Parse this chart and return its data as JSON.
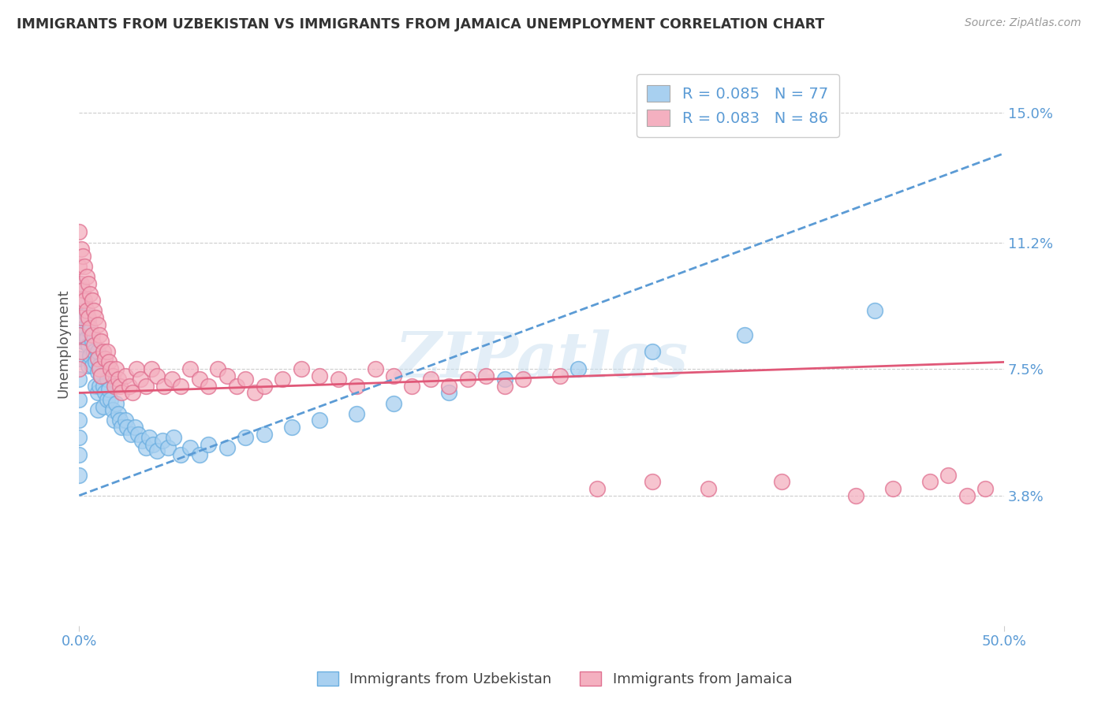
{
  "title": "IMMIGRANTS FROM UZBEKISTAN VS IMMIGRANTS FROM JAMAICA UNEMPLOYMENT CORRELATION CHART",
  "source": "Source: ZipAtlas.com",
  "ylabel": "Unemployment",
  "xlim": [
    0.0,
    0.5
  ],
  "ylim": [
    0.0,
    0.165
  ],
  "ytick_vals": [
    0.038,
    0.075,
    0.112,
    0.15
  ],
  "ytick_labels": [
    "3.8%",
    "7.5%",
    "11.2%",
    "15.0%"
  ],
  "series": [
    {
      "name": "Immigrants from Uzbekistan",
      "R": 0.085,
      "N": 77,
      "color_scatter": "#a8d0f0",
      "color_edge": "#6aaee0",
      "line_color": "#5b9bd5",
      "line_style": "--",
      "intercept": 0.038,
      "slope": 0.2,
      "x_data": [
        0.0,
        0.0,
        0.0,
        0.0,
        0.0,
        0.0,
        0.0,
        0.0,
        0.0,
        0.0,
        0.002,
        0.002,
        0.002,
        0.003,
        0.003,
        0.004,
        0.004,
        0.005,
        0.005,
        0.005,
        0.006,
        0.006,
        0.007,
        0.007,
        0.008,
        0.009,
        0.009,
        0.01,
        0.01,
        0.01,
        0.01,
        0.011,
        0.011,
        0.012,
        0.013,
        0.013,
        0.014,
        0.015,
        0.015,
        0.016,
        0.017,
        0.018,
        0.019,
        0.02,
        0.021,
        0.022,
        0.023,
        0.025,
        0.026,
        0.028,
        0.03,
        0.032,
        0.034,
        0.036,
        0.038,
        0.04,
        0.042,
        0.045,
        0.048,
        0.051,
        0.055,
        0.06,
        0.065,
        0.07,
        0.08,
        0.09,
        0.1,
        0.115,
        0.13,
        0.15,
        0.17,
        0.2,
        0.23,
        0.27,
        0.31,
        0.36,
        0.43
      ],
      "y_data": [
        0.1,
        0.092,
        0.085,
        0.078,
        0.072,
        0.066,
        0.06,
        0.055,
        0.05,
        0.044,
        0.098,
        0.09,
        0.083,
        0.094,
        0.087,
        0.091,
        0.084,
        0.089,
        0.082,
        0.076,
        0.086,
        0.079,
        0.083,
        0.076,
        0.08,
        0.077,
        0.07,
        0.08,
        0.074,
        0.068,
        0.063,
        0.076,
        0.07,
        0.073,
        0.07,
        0.064,
        0.068,
        0.072,
        0.066,
        0.069,
        0.066,
        0.063,
        0.06,
        0.065,
        0.062,
        0.06,
        0.058,
        0.06,
        0.058,
        0.056,
        0.058,
        0.056,
        0.054,
        0.052,
        0.055,
        0.053,
        0.051,
        0.054,
        0.052,
        0.055,
        0.05,
        0.052,
        0.05,
        0.053,
        0.052,
        0.055,
        0.056,
        0.058,
        0.06,
        0.062,
        0.065,
        0.068,
        0.072,
        0.075,
        0.08,
        0.085,
        0.092
      ]
    },
    {
      "name": "Immigrants from Jamaica",
      "R": 0.083,
      "N": 86,
      "color_scatter": "#f4b0c0",
      "color_edge": "#e07090",
      "line_color": "#e05878",
      "line_style": "-",
      "intercept": 0.068,
      "slope": 0.018,
      "x_data": [
        0.0,
        0.0,
        0.0,
        0.0,
        0.0,
        0.001,
        0.001,
        0.001,
        0.001,
        0.002,
        0.002,
        0.003,
        0.003,
        0.004,
        0.004,
        0.005,
        0.005,
        0.006,
        0.006,
        0.007,
        0.007,
        0.008,
        0.008,
        0.009,
        0.01,
        0.01,
        0.011,
        0.011,
        0.012,
        0.012,
        0.013,
        0.014,
        0.015,
        0.016,
        0.017,
        0.018,
        0.019,
        0.02,
        0.021,
        0.022,
        0.023,
        0.025,
        0.027,
        0.029,
        0.031,
        0.033,
        0.036,
        0.039,
        0.042,
        0.046,
        0.05,
        0.055,
        0.06,
        0.065,
        0.07,
        0.075,
        0.08,
        0.085,
        0.09,
        0.095,
        0.1,
        0.11,
        0.12,
        0.13,
        0.14,
        0.15,
        0.16,
        0.17,
        0.18,
        0.19,
        0.2,
        0.21,
        0.22,
        0.23,
        0.24,
        0.26,
        0.28,
        0.31,
        0.34,
        0.38,
        0.42,
        0.44,
        0.46,
        0.47,
        0.48,
        0.49
      ],
      "y_data": [
        0.115,
        0.105,
        0.095,
        0.085,
        0.075,
        0.11,
        0.1,
        0.09,
        0.08,
        0.108,
        0.098,
        0.105,
        0.095,
        0.102,
        0.092,
        0.1,
        0.09,
        0.097,
        0.087,
        0.095,
        0.085,
        0.092,
        0.082,
        0.09,
        0.088,
        0.078,
        0.085,
        0.075,
        0.083,
        0.073,
        0.08,
        0.078,
        0.08,
        0.077,
        0.075,
        0.073,
        0.07,
        0.075,
        0.072,
        0.07,
        0.068,
        0.073,
        0.07,
        0.068,
        0.075,
        0.072,
        0.07,
        0.075,
        0.073,
        0.07,
        0.072,
        0.07,
        0.075,
        0.072,
        0.07,
        0.075,
        0.073,
        0.07,
        0.072,
        0.068,
        0.07,
        0.072,
        0.075,
        0.073,
        0.072,
        0.07,
        0.075,
        0.073,
        0.07,
        0.072,
        0.07,
        0.072,
        0.073,
        0.07,
        0.072,
        0.073,
        0.04,
        0.042,
        0.04,
        0.042,
        0.038,
        0.04,
        0.042,
        0.044,
        0.038,
        0.04
      ]
    }
  ],
  "watermark": "ZIPatlas",
  "background_color": "#ffffff",
  "grid_color": "#cccccc",
  "title_color": "#333333",
  "tick_color": "#5b9bd5"
}
